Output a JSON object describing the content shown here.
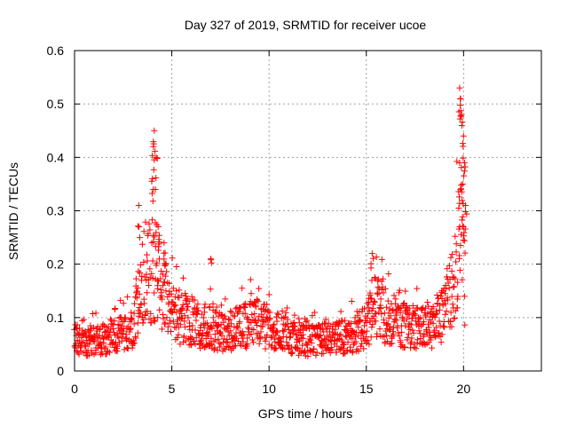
{
  "chart_data": {
    "type": "scatter",
    "title": "Day 327 of 2019, SRMTID for receiver ucoe",
    "xlabel": "GPS time / hours",
    "ylabel": "SRMTID / TECUs",
    "xlim": [
      0,
      24
    ],
    "ylim": [
      0,
      0.6
    ],
    "xticks": [
      0,
      5,
      10,
      15,
      20
    ],
    "xtick_labels": [
      "0",
      "5",
      "10",
      "15",
      "20"
    ],
    "yticks": [
      0,
      0.1,
      0.2,
      0.3,
      0.4,
      0.5,
      0.6
    ],
    "ytick_labels": [
      "0",
      "0.1",
      "0.2",
      "0.3",
      "0.4",
      "0.5",
      "0.6"
    ],
    "grid": true,
    "marker": "+",
    "color": "#ff0000",
    "envelope_x": [
      0,
      1,
      2,
      3,
      3.3,
      3.6,
      4.0,
      4.2,
      4.6,
      5.0,
      6,
      7,
      8,
      9,
      9.5,
      10,
      11,
      12,
      13,
      14,
      15,
      15.4,
      16,
      17,
      18,
      18.7,
      19.2,
      19.5,
      19.7,
      19.85,
      20.0,
      20.1
    ],
    "envelope_y": [
      0.06,
      0.065,
      0.07,
      0.08,
      0.15,
      0.2,
      0.2,
      0.2,
      0.16,
      0.12,
      0.1,
      0.085,
      0.08,
      0.095,
      0.1,
      0.085,
      0.07,
      0.06,
      0.065,
      0.07,
      0.09,
      0.14,
      0.11,
      0.09,
      0.09,
      0.1,
      0.14,
      0.18,
      0.25,
      0.3,
      0.2,
      0.15
    ],
    "spikes": [
      {
        "x": 4.1,
        "y": 0.45
      },
      {
        "x": 4.05,
        "y": 0.42
      },
      {
        "x": 4.2,
        "y": 0.4
      },
      {
        "x": 3.3,
        "y": 0.31
      },
      {
        "x": 4.0,
        "y": 0.36
      },
      {
        "x": 4.3,
        "y": 0.27
      },
      {
        "x": 4.6,
        "y": 0.24
      },
      {
        "x": 7.0,
        "y": 0.21
      },
      {
        "x": 15.3,
        "y": 0.22
      },
      {
        "x": 19.8,
        "y": 0.53
      },
      {
        "x": 19.85,
        "y": 0.51
      },
      {
        "x": 19.9,
        "y": 0.48
      },
      {
        "x": 20.0,
        "y": 0.44
      },
      {
        "x": 20.05,
        "y": 0.39
      },
      {
        "x": 19.95,
        "y": 0.35
      },
      {
        "x": 20.1,
        "y": 0.31
      },
      {
        "x": 19.8,
        "y": 0.27
      }
    ]
  }
}
